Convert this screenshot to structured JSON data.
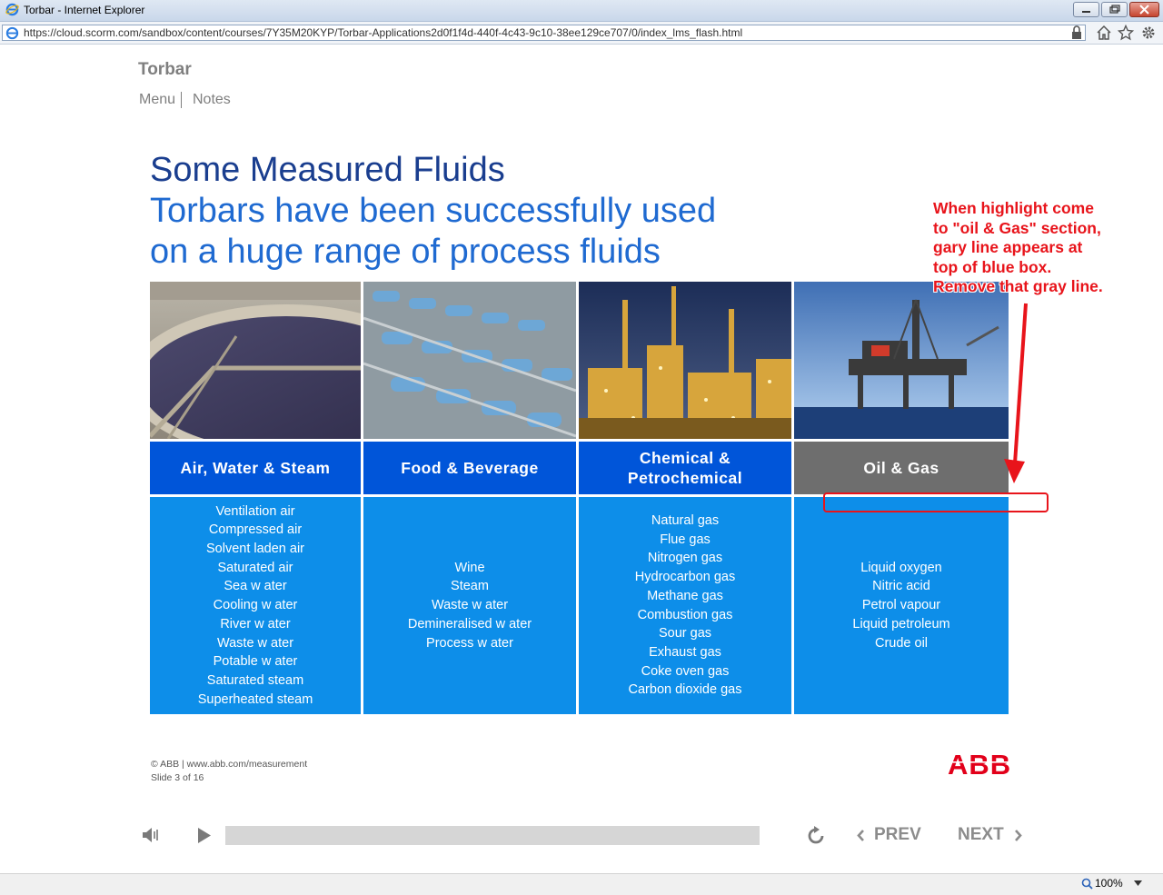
{
  "browser": {
    "window_title": "Torbar - Internet Explorer",
    "url": "https://cloud.scorm.com/sandbox/content/courses/7Y35M20KYP/Torbar-Applications2d0f1f4d-440f-4c43-9c10-38ee129ce707/0/index_lms_flash.html",
    "zoom": "100%"
  },
  "course": {
    "title": "Torbar",
    "menu_label": "Menu",
    "notes_label": "Notes"
  },
  "slide": {
    "title": "Some Measured Fluids",
    "subtitle_line1": "Torbars have been successfully used",
    "subtitle_line2": "on a huge range of process fluids",
    "columns": [
      {
        "heading": "Air, Water & Steam",
        "color": "#0055d9",
        "items": [
          "Ventilation air",
          "Compressed air",
          "Solvent laden air",
          "Saturated air",
          "Sea w ater",
          "Cooling w ater",
          "River w ater",
          "Waste w ater",
          "Potable w ater",
          "Saturated steam",
          "Superheated steam"
        ]
      },
      {
        "heading": "Food & Beverage",
        "color": "#0055d9",
        "items": [
          "Wine",
          "Steam",
          "Waste w ater",
          "Demineralised w ater",
          "Process w ater"
        ]
      },
      {
        "heading_line1": "Chemical &",
        "heading_line2": "Petrochemical",
        "color": "#0055d9",
        "items": [
          "Natural gas",
          "Flue gas",
          "Nitrogen gas",
          "Hydrocarbon gas",
          "Methane gas",
          "Combustion gas",
          "Sour gas",
          "Exhaust gas",
          "Coke oven gas",
          "Carbon dioxide gas"
        ]
      },
      {
        "heading": "Oil & Gas",
        "color": "#6e6e6e",
        "items": [
          "Liquid oxygen",
          "Nitric acid",
          "Petrol vapour",
          "Liquid petroleum",
          "Crude oil"
        ]
      }
    ],
    "annotation": {
      "lines": [
        "When highlight come",
        "to \"oil & Gas\" section,",
        "gary line appears at",
        "top of blue box.",
        "Remove that gray line."
      ],
      "color": "#e8141b"
    },
    "footer": {
      "copyright": "© ABB | www.abb.com/measurement",
      "slide_number": "Slide 3 of 16",
      "logo_text": "ABB"
    }
  },
  "player": {
    "prev_label": "PREV",
    "next_label": "NEXT"
  }
}
